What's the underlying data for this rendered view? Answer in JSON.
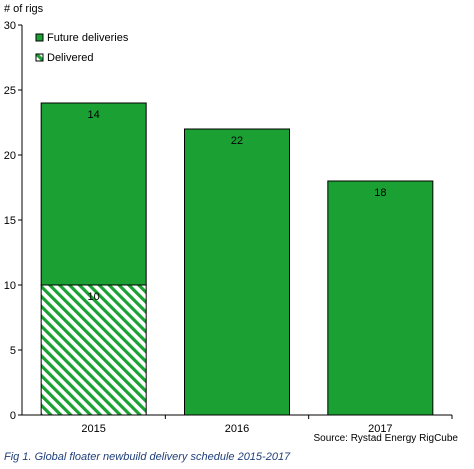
{
  "chart_data": {
    "type": "bar",
    "stacked": true,
    "ylabel": "# of rigs",
    "xlabel": "",
    "ylim": [
      0,
      30
    ],
    "yticks": [
      0,
      5,
      10,
      15,
      20,
      25,
      30
    ],
    "categories": [
      "2015",
      "2016",
      "2017"
    ],
    "series": [
      {
        "name": "Delivered",
        "values": [
          10,
          0,
          0
        ],
        "color": "#1aa033",
        "pattern": "hatched"
      },
      {
        "name": "Future deliveries",
        "values": [
          14,
          22,
          18
        ],
        "color": "#1aa033",
        "pattern": "solid"
      }
    ],
    "legend_position": "top-left",
    "grid": false
  },
  "source": "Source: Rystad Energy RigCube",
  "caption": "Fig 1. Global floater newbuild delivery schedule 2015-2017"
}
